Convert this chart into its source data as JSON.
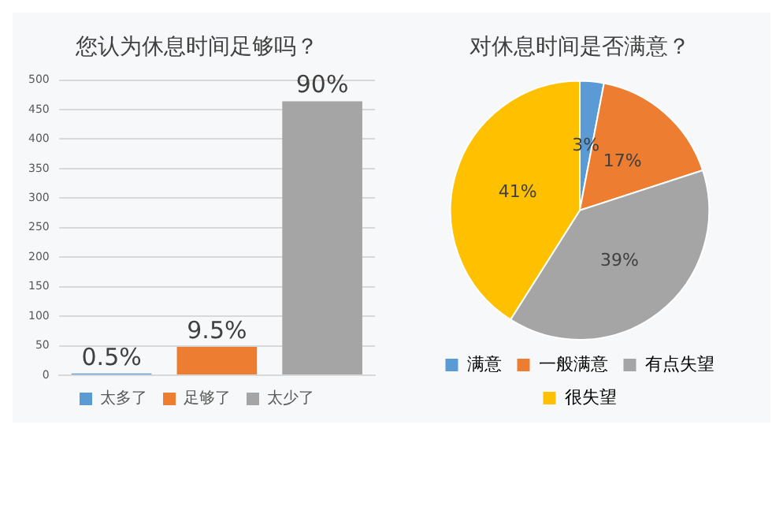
{
  "chart_data": [
    {
      "type": "bar",
      "title": "您认为休息时间足够吗？",
      "categories": [
        null,
        null,
        null
      ],
      "series": [
        {
          "name": "太多了",
          "color": "#5b9bd5",
          "values": [
            3,
            null,
            null
          ]
        },
        {
          "name": "足够了",
          "color": "#ed7d31",
          "values": [
            null,
            48,
            null
          ]
        },
        {
          "name": "太少了",
          "color": "#a5a5a5",
          "values": [
            null,
            null,
            464
          ]
        }
      ],
      "annotations": [
        {
          "text": "0.5%",
          "y": 3
        },
        {
          "text": "9.5%",
          "y": 48
        },
        {
          "text": "90%",
          "y": 464
        }
      ],
      "ylim": [
        0,
        500
      ],
      "yticks": [
        0,
        50,
        100,
        150,
        200,
        250,
        300,
        350,
        400,
        450,
        500
      ],
      "grid": "y",
      "legend": "bottom"
    },
    {
      "type": "pie",
      "title": "对休息时间是否满意？",
      "categories": [
        "满意",
        "一般满意",
        "有点失望",
        "很失望"
      ],
      "values": [
        3,
        17,
        39,
        41
      ],
      "colors": [
        "#5b9bd5",
        "#ed7d31",
        "#a5a5a5",
        "#ffc000"
      ],
      "value_labels": [
        "3%",
        "17%",
        "39%",
        "41%"
      ],
      "legend": "bottom"
    }
  ]
}
